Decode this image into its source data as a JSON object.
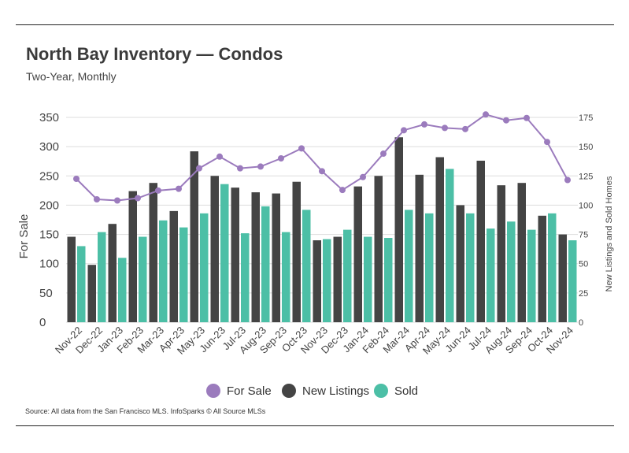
{
  "header": {
    "title": "North Bay Inventory — Condos",
    "subtitle": "Two-Year, Monthly"
  },
  "footer": {
    "source": "Source:  All data from the San Francisco MLS. InfoSparks © All Source MLSs"
  },
  "colors": {
    "for_sale": "#9b7bbd",
    "new_listings": "#444444",
    "sold": "#4cbfa6",
    "grid": "#dddddd"
  },
  "chart_data": {
    "type": "bar",
    "categories": [
      "Nov-22",
      "Dec-22",
      "Jan-23",
      "Feb-23",
      "Mar-23",
      "Apr-23",
      "May-23",
      "Jun-23",
      "Jul-23",
      "Aug-23",
      "Sep-23",
      "Oct-23",
      "Nov-23",
      "Dec-23",
      "Jan-24",
      "Feb-24",
      "Mar-24",
      "Apr-24",
      "May-24",
      "Jun-24",
      "Jul-24",
      "Aug-24",
      "Sep-24",
      "Oct-24",
      "Nov-24"
    ],
    "left_axis": {
      "label": "For Sale",
      "ylim": [
        0,
        350
      ],
      "ticks": [
        "0",
        "50",
        "100",
        "150",
        "200",
        "250",
        "300",
        "350"
      ]
    },
    "right_axis": {
      "label": "New Listings and Sold Homes",
      "ylim": [
        0,
        175
      ],
      "ticks": [
        "0",
        "25",
        "50",
        "75",
        "100",
        "125",
        "150",
        "175"
      ]
    },
    "series": [
      {
        "name": "For Sale",
        "type": "line",
        "axis": "left",
        "color": "#9b7bbd",
        "values": [
          245,
          210,
          208,
          212,
          225,
          228,
          263,
          283,
          263,
          266,
          280,
          297,
          258,
          226,
          248,
          288,
          328,
          338,
          332,
          330,
          355,
          345,
          349,
          308,
          243
        ]
      },
      {
        "name": "New Listings",
        "type": "bar",
        "axis": "right",
        "color": "#444444",
        "values": [
          73,
          49,
          84,
          112,
          119,
          95,
          146,
          125,
          115,
          111,
          110,
          120,
          70,
          73,
          116,
          125,
          158,
          126,
          141,
          100,
          138,
          117,
          119,
          91,
          75
        ]
      },
      {
        "name": "Sold",
        "type": "bar",
        "axis": "right",
        "color": "#4cbfa6",
        "values": [
          65,
          77,
          55,
          73,
          87,
          81,
          93,
          118,
          76,
          99,
          77,
          96,
          71,
          79,
          73,
          72,
          96,
          93,
          131,
          93,
          80,
          86,
          79,
          93,
          70
        ]
      }
    ],
    "legend": {
      "position": "bottom",
      "items": [
        {
          "label": "For Sale",
          "color": "#9b7bbd"
        },
        {
          "label": "New Listings",
          "color": "#444444"
        },
        {
          "label": "Sold",
          "color": "#4cbfa6"
        }
      ]
    },
    "grid": true
  }
}
